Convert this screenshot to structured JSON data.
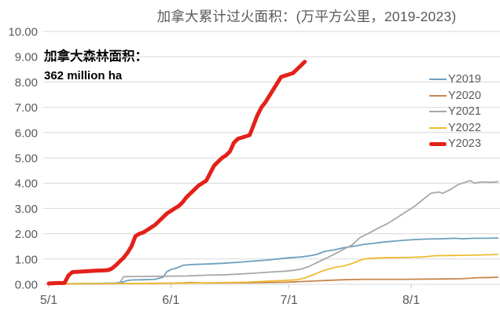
{
  "title": "加拿大累计过火面积：(万平方公里，2019-2023)",
  "annotation": {
    "line1": "加拿大森林面积：",
    "line2": "362 million ha"
  },
  "chart_data": {
    "type": "line",
    "title": "加拿大累计过火面积：(万平方公里，2019-2023)",
    "xlabel": "",
    "ylabel": "",
    "grid": "horizontal",
    "legend_position": "right",
    "ylim": [
      0,
      10
    ],
    "y_ticks": [
      0,
      1,
      2,
      3,
      4,
      5,
      6,
      7,
      8,
      9,
      10
    ],
    "y_tick_labels": [
      "0.00",
      "1.00",
      "2.00",
      "3.00",
      "4.00",
      "5.00",
      "6.00",
      "7.00",
      "8.00",
      "9.00",
      "10.00"
    ],
    "x_axis_note": "days measured as offset from May 1",
    "x_tick_days": [
      0,
      31,
      61,
      92
    ],
    "x_tick_labels": [
      "5/1",
      "6/1",
      "7/1",
      "8/1"
    ],
    "x_range_days": [
      0,
      114
    ],
    "style": {
      "grid_color": "#d9d9d9",
      "axis_color": "#d9d9d9",
      "tick_color": "#c6c6c6",
      "text_color": "#595959"
    },
    "series": [
      {
        "name": "Y2019",
        "color": "#6e9fbe",
        "width": 1.8,
        "points": [
          [
            0,
            0.02
          ],
          [
            8,
            0.03
          ],
          [
            14,
            0.04
          ],
          [
            17,
            0.05
          ],
          [
            19,
            0.1
          ],
          [
            20,
            0.15
          ],
          [
            21,
            0.17
          ],
          [
            24,
            0.18
          ],
          [
            27,
            0.2
          ],
          [
            29,
            0.28
          ],
          [
            30,
            0.5
          ],
          [
            31,
            0.58
          ],
          [
            32,
            0.62
          ],
          [
            33,
            0.68
          ],
          [
            34,
            0.75
          ],
          [
            36,
            0.78
          ],
          [
            40,
            0.8
          ],
          [
            44,
            0.83
          ],
          [
            48,
            0.87
          ],
          [
            52,
            0.92
          ],
          [
            55,
            0.95
          ],
          [
            58,
            1.0
          ],
          [
            61,
            1.05
          ],
          [
            64,
            1.08
          ],
          [
            66,
            1.12
          ],
          [
            68,
            1.18
          ],
          [
            70,
            1.3
          ],
          [
            73,
            1.38
          ],
          [
            75,
            1.45
          ],
          [
            78,
            1.52
          ],
          [
            80,
            1.58
          ],
          [
            83,
            1.63
          ],
          [
            85,
            1.67
          ],
          [
            88,
            1.71
          ],
          [
            90,
            1.74
          ],
          [
            93,
            1.77
          ],
          [
            96,
            1.79
          ],
          [
            100,
            1.8
          ],
          [
            103,
            1.82
          ],
          [
            105,
            1.8
          ],
          [
            108,
            1.82
          ],
          [
            111,
            1.82
          ],
          [
            114,
            1.83
          ]
        ]
      },
      {
        "name": "Y2020",
        "color": "#c8854c",
        "width": 1.8,
        "points": [
          [
            0,
            0.01
          ],
          [
            10,
            0.02
          ],
          [
            20,
            0.03
          ],
          [
            30,
            0.04
          ],
          [
            34,
            0.06
          ],
          [
            36,
            0.07
          ],
          [
            40,
            0.05
          ],
          [
            50,
            0.06
          ],
          [
            55,
            0.07
          ],
          [
            60,
            0.08
          ],
          [
            63,
            0.1
          ],
          [
            66,
            0.12
          ],
          [
            70,
            0.15
          ],
          [
            75,
            0.18
          ],
          [
            80,
            0.2
          ],
          [
            90,
            0.2
          ],
          [
            100,
            0.21
          ],
          [
            105,
            0.22
          ],
          [
            109,
            0.26
          ],
          [
            112,
            0.27
          ],
          [
            114,
            0.28
          ]
        ]
      },
      {
        "name": "Y2021",
        "color": "#a8a8a8",
        "width": 1.8,
        "points": [
          [
            0,
            0.02
          ],
          [
            17,
            0.02
          ],
          [
            18,
            0.05
          ],
          [
            19,
            0.3
          ],
          [
            22,
            0.31
          ],
          [
            30,
            0.32
          ],
          [
            35,
            0.33
          ],
          [
            40,
            0.36
          ],
          [
            45,
            0.38
          ],
          [
            50,
            0.42
          ],
          [
            53,
            0.45
          ],
          [
            56,
            0.48
          ],
          [
            58,
            0.5
          ],
          [
            60,
            0.52
          ],
          [
            62,
            0.55
          ],
          [
            64,
            0.6
          ],
          [
            66,
            0.7
          ],
          [
            68,
            0.85
          ],
          [
            70,
            1.0
          ],
          [
            72,
            1.15
          ],
          [
            75,
            1.4
          ],
          [
            77,
            1.55
          ],
          [
            79,
            1.85
          ],
          [
            81,
            2.0
          ],
          [
            84,
            2.25
          ],
          [
            86,
            2.4
          ],
          [
            89,
            2.7
          ],
          [
            91,
            2.9
          ],
          [
            93,
            3.1
          ],
          [
            95,
            3.35
          ],
          [
            97,
            3.6
          ],
          [
            99,
            3.65
          ],
          [
            100,
            3.6
          ],
          [
            102,
            3.75
          ],
          [
            104,
            3.95
          ],
          [
            106,
            4.05
          ],
          [
            107,
            4.1
          ],
          [
            108,
            4.0
          ],
          [
            110,
            4.05
          ],
          [
            112,
            4.03
          ],
          [
            114,
            4.06
          ]
        ]
      },
      {
        "name": "Y2022",
        "color": "#eebc31",
        "width": 1.8,
        "points": [
          [
            0,
            0.02
          ],
          [
            20,
            0.03
          ],
          [
            30,
            0.04
          ],
          [
            40,
            0.06
          ],
          [
            50,
            0.08
          ],
          [
            55,
            0.12
          ],
          [
            58,
            0.14
          ],
          [
            61,
            0.16
          ],
          [
            63,
            0.18
          ],
          [
            65,
            0.25
          ],
          [
            67,
            0.37
          ],
          [
            69,
            0.5
          ],
          [
            71,
            0.6
          ],
          [
            73,
            0.68
          ],
          [
            75,
            0.73
          ],
          [
            77,
            0.82
          ],
          [
            79,
            0.95
          ],
          [
            80,
            1.0
          ],
          [
            82,
            1.03
          ],
          [
            85,
            1.05
          ],
          [
            90,
            1.06
          ],
          [
            95,
            1.08
          ],
          [
            98,
            1.13
          ],
          [
            102,
            1.14
          ],
          [
            106,
            1.15
          ],
          [
            110,
            1.16
          ],
          [
            114,
            1.18
          ]
        ]
      },
      {
        "name": "Y2023",
        "color": "#e32119",
        "width": 5,
        "points": [
          [
            0,
            0.03
          ],
          [
            2,
            0.05
          ],
          [
            4,
            0.05
          ],
          [
            5,
            0.35
          ],
          [
            6,
            0.48
          ],
          [
            8,
            0.5
          ],
          [
            10,
            0.52
          ],
          [
            12,
            0.54
          ],
          [
            14,
            0.55
          ],
          [
            15,
            0.56
          ],
          [
            16,
            0.62
          ],
          [
            17,
            0.75
          ],
          [
            18,
            0.9
          ],
          [
            19,
            1.05
          ],
          [
            20,
            1.25
          ],
          [
            21,
            1.5
          ],
          [
            22,
            1.9
          ],
          [
            23,
            2.0
          ],
          [
            24,
            2.05
          ],
          [
            25,
            2.15
          ],
          [
            26,
            2.25
          ],
          [
            27,
            2.35
          ],
          [
            28,
            2.5
          ],
          [
            29,
            2.65
          ],
          [
            30,
            2.8
          ],
          [
            31,
            2.9
          ],
          [
            32,
            3.0
          ],
          [
            33,
            3.1
          ],
          [
            34,
            3.25
          ],
          [
            35,
            3.45
          ],
          [
            36,
            3.6
          ],
          [
            37,
            3.75
          ],
          [
            38,
            3.9
          ],
          [
            39,
            4.0
          ],
          [
            40,
            4.1
          ],
          [
            41,
            4.4
          ],
          [
            42,
            4.7
          ],
          [
            43,
            4.85
          ],
          [
            44,
            5.0
          ],
          [
            45,
            5.1
          ],
          [
            46,
            5.25
          ],
          [
            47,
            5.6
          ],
          [
            48,
            5.75
          ],
          [
            49,
            5.8
          ],
          [
            50,
            5.85
          ],
          [
            51,
            5.9
          ],
          [
            52,
            6.3
          ],
          [
            53,
            6.7
          ],
          [
            54,
            7.0
          ],
          [
            55,
            7.2
          ],
          [
            56,
            7.45
          ],
          [
            57,
            7.7
          ],
          [
            58,
            7.95
          ],
          [
            59,
            8.2
          ],
          [
            60,
            8.25
          ],
          [
            61,
            8.3
          ],
          [
            62,
            8.35
          ],
          [
            63,
            8.5
          ],
          [
            64,
            8.65
          ],
          [
            65,
            8.8
          ]
        ]
      }
    ]
  }
}
